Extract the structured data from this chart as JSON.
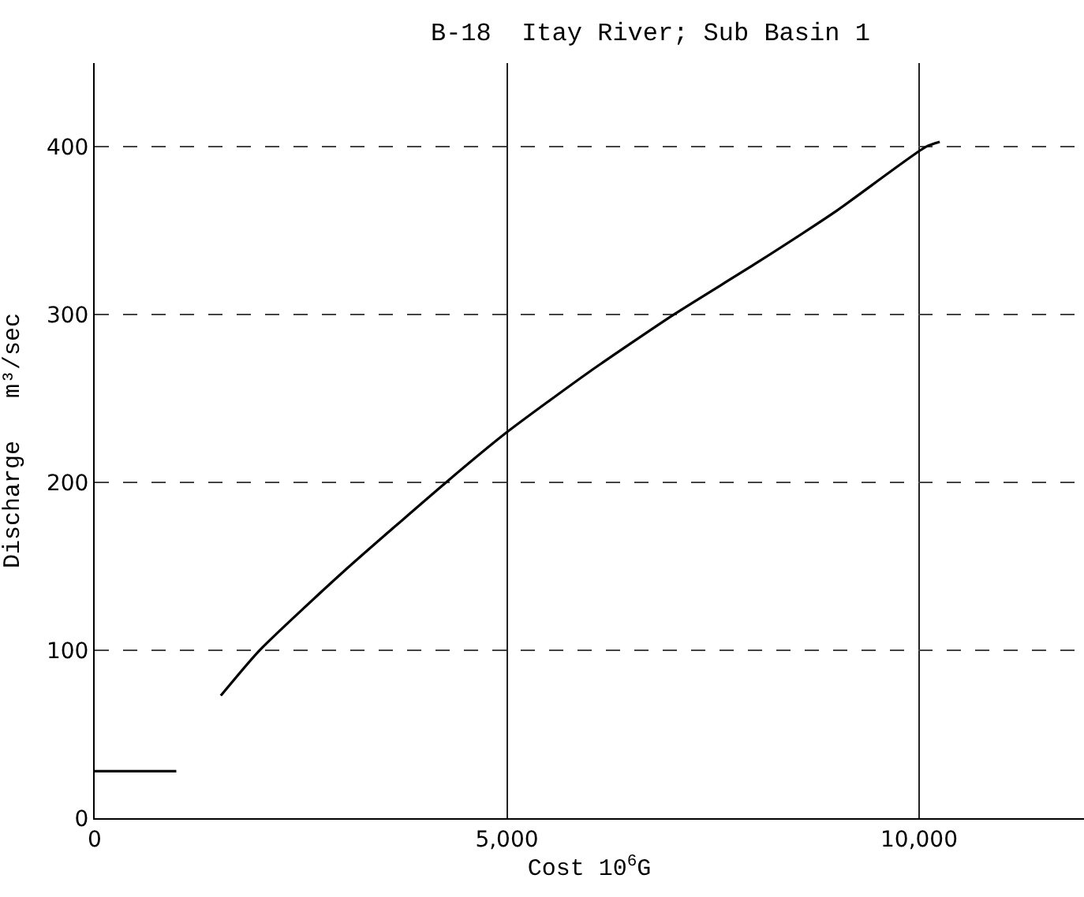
{
  "chart_data": {
    "type": "line",
    "title": "B-18  Itay River; Sub Basin 1",
    "xlabel": "Cost 10$^{6}$G",
    "ylabel": "Discharge   m³/sec",
    "series": [
      {
        "color": "#000000",
        "x": [
          1530,
          2000,
          3020,
          4260,
          5000,
          6000,
          7020,
          8000,
          9000,
          10080,
          10250
        ],
        "values": [
          73,
          100,
          147,
          200,
          230,
          266,
          300,
          330,
          362,
          400,
          403
        ]
      },
      {
        "color": "#000000",
        "x": [
          0,
          990
        ],
        "values": [
          28,
          28
        ]
      }
    ],
    "xlim": [
      0,
      12000
    ],
    "xticks": [
      0,
      {
        "value": 5000,
        "label": "5,000"
      },
      {
        "value": 10000,
        "label": "10,000"
      }
    ],
    "ylim": [
      0,
      450
    ],
    "yticks": [
      0,
      100,
      200,
      300,
      400
    ],
    "grid": true,
    "marker": "none",
    "line_style": "solid"
  }
}
